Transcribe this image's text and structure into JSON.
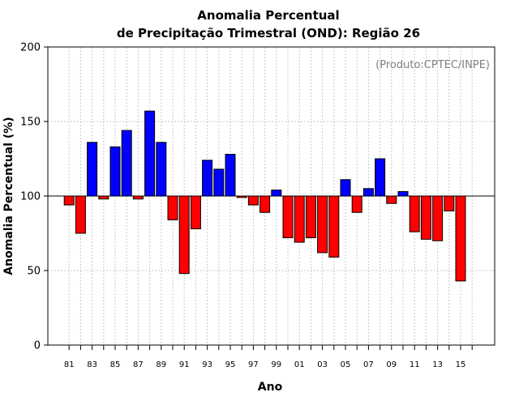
{
  "chart_data": {
    "type": "bar",
    "title": "Anomalia Percentual",
    "subtitle": "de Precipitação Trimestral (OND): Região 26",
    "xlabel": "Ano",
    "ylabel": "Anomalia Percentual (%)",
    "source_note": "(Produto:CPTEC/INPE)",
    "ylim": [
      0,
      200
    ],
    "yticks": [
      0,
      50,
      100,
      150,
      200
    ],
    "baseline": 100,
    "categories": [
      "81",
      "82",
      "83",
      "84",
      "85",
      "86",
      "87",
      "88",
      "89",
      "90",
      "91",
      "92",
      "93",
      "94",
      "95",
      "96",
      "97",
      "98",
      "99",
      "00",
      "01",
      "02",
      "03",
      "04",
      "05",
      "06",
      "07",
      "08",
      "09",
      "10",
      "11",
      "12",
      "13",
      "14",
      "15"
    ],
    "xtick_labels": [
      "81",
      "83",
      "85",
      "87",
      "89",
      "91",
      "93",
      "95",
      "97",
      "99",
      "01",
      "03",
      "05",
      "07",
      "09",
      "11",
      "13",
      "15"
    ],
    "values": [
      94,
      75,
      136,
      98,
      133,
      144,
      98,
      157,
      136,
      84,
      48,
      78,
      124,
      118,
      128,
      99,
      94,
      89,
      104,
      72,
      69,
      72,
      62,
      59,
      111,
      89,
      105,
      125,
      95,
      103,
      76,
      71,
      70,
      90,
      43
    ],
    "colors": {
      "above": "#0000ff",
      "below": "#ff0000",
      "axis": "#000000",
      "grid": "#c8c8c8"
    },
    "grid": true
  }
}
